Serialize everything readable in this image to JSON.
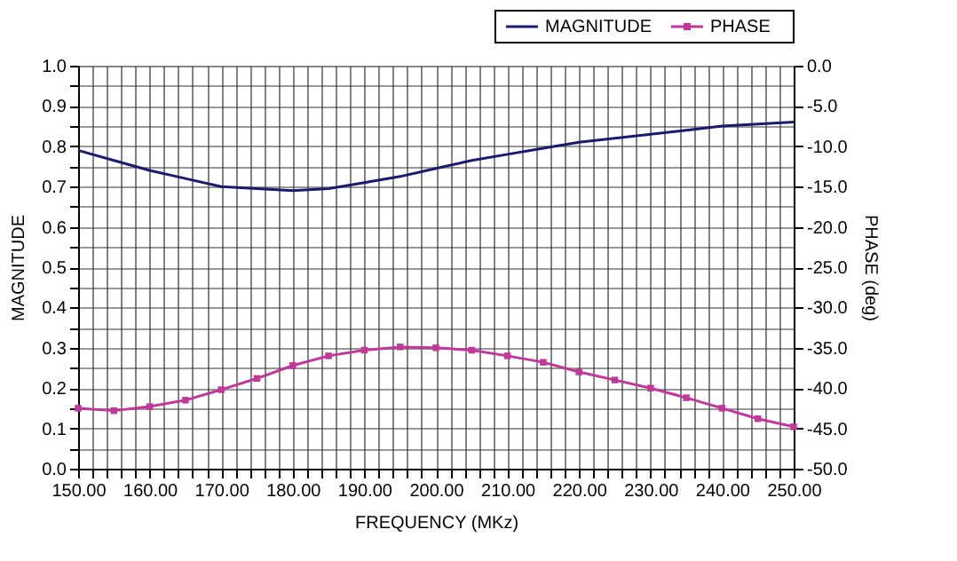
{
  "chart_data": {
    "type": "line",
    "xlabel": "FREQUENCY (MKz)",
    "ylabel": "MAGNITUDE",
    "y2label": "PHASE (deg)",
    "x": [
      150,
      155,
      160,
      165,
      170,
      175,
      180,
      185,
      190,
      195,
      200,
      205,
      210,
      215,
      220,
      225,
      230,
      235,
      240,
      245,
      250
    ],
    "series": [
      {
        "name": "MAGNITUDE",
        "color": "#1a1a6e",
        "marker": "none",
        "values": [
          0.79,
          0.765,
          0.74,
          0.72,
          0.7,
          0.695,
          0.69,
          0.695,
          0.71,
          0.725,
          0.745,
          0.765,
          0.78,
          0.795,
          0.81,
          0.82,
          0.83,
          0.84,
          0.85,
          0.855,
          0.86
        ]
      },
      {
        "name": "PHASE",
        "color": "#c0399a",
        "marker": "square",
        "axis": "y2",
        "values": [
          -42.5,
          -42.8,
          -42.3,
          -41.5,
          -40.2,
          -38.8,
          -37.2,
          -36.0,
          -35.3,
          -34.9,
          -35.0,
          -35.3,
          -36.0,
          -36.8,
          -38.0,
          -39.0,
          -40.0,
          -41.2,
          -42.5,
          -43.8,
          -44.8
        ]
      }
    ],
    "xlim": [
      150,
      250
    ],
    "xticks": [
      {
        "value": 150,
        "label": "150.00"
      },
      {
        "value": 152,
        "label": null
      },
      {
        "value": 154,
        "label": null
      },
      {
        "value": 156,
        "label": null
      },
      {
        "value": 158,
        "label": null
      },
      {
        "value": 160,
        "label": "160.00"
      },
      {
        "value": 162,
        "label": null
      },
      {
        "value": 164,
        "label": null
      },
      {
        "value": 166,
        "label": null
      },
      {
        "value": 168,
        "label": null
      },
      {
        "value": 170,
        "label": "170.00"
      },
      {
        "value": 172,
        "label": null
      },
      {
        "value": 174,
        "label": null
      },
      {
        "value": 176,
        "label": null
      },
      {
        "value": 178,
        "label": null
      },
      {
        "value": 180,
        "label": "180.00"
      },
      {
        "value": 182,
        "label": null
      },
      {
        "value": 184,
        "label": null
      },
      {
        "value": 186,
        "label": null
      },
      {
        "value": 188,
        "label": null
      },
      {
        "value": 190,
        "label": "190.00"
      },
      {
        "value": 192,
        "label": null
      },
      {
        "value": 194,
        "label": null
      },
      {
        "value": 196,
        "label": null
      },
      {
        "value": 198,
        "label": null
      },
      {
        "value": 200,
        "label": "200.00"
      },
      {
        "value": 202,
        "label": null
      },
      {
        "value": 204,
        "label": null
      },
      {
        "value": 206,
        "label": null
      },
      {
        "value": 208,
        "label": null
      },
      {
        "value": 210,
        "label": "210.00"
      },
      {
        "value": 212,
        "label": null
      },
      {
        "value": 214,
        "label": null
      },
      {
        "value": 216,
        "label": null
      },
      {
        "value": 218,
        "label": null
      },
      {
        "value": 220,
        "label": "220.00"
      },
      {
        "value": 222,
        "label": null
      },
      {
        "value": 224,
        "label": null
      },
      {
        "value": 226,
        "label": null
      },
      {
        "value": 228,
        "label": null
      },
      {
        "value": 230,
        "label": "230.00"
      },
      {
        "value": 232,
        "label": null
      },
      {
        "value": 234,
        "label": null
      },
      {
        "value": 236,
        "label": null
      },
      {
        "value": 238,
        "label": null
      },
      {
        "value": 240,
        "label": "240.00"
      },
      {
        "value": 242,
        "label": null
      },
      {
        "value": 244,
        "label": null
      },
      {
        "value": 246,
        "label": null
      },
      {
        "value": 248,
        "label": null
      },
      {
        "value": 250,
        "label": "250.00"
      }
    ],
    "ylim": [
      0,
      1
    ],
    "yticks": [
      {
        "value": 0,
        "label": "0.0"
      },
      {
        "value": 0.05,
        "label": null
      },
      {
        "value": 0.1,
        "label": "0.1"
      },
      {
        "value": 0.15,
        "label": null
      },
      {
        "value": 0.2,
        "label": "0.2"
      },
      {
        "value": 0.25,
        "label": null
      },
      {
        "value": 0.3,
        "label": "0.3"
      },
      {
        "value": 0.35,
        "label": null
      },
      {
        "value": 0.4,
        "label": "0.4"
      },
      {
        "value": 0.45,
        "label": null
      },
      {
        "value": 0.5,
        "label": "0.5"
      },
      {
        "value": 0.55,
        "label": null
      },
      {
        "value": 0.6,
        "label": "0.6"
      },
      {
        "value": 0.65,
        "label": null
      },
      {
        "value": 0.7,
        "label": "0.7"
      },
      {
        "value": 0.75,
        "label": null
      },
      {
        "value": 0.8,
        "label": "0.8"
      },
      {
        "value": 0.85,
        "label": null
      },
      {
        "value": 0.9,
        "label": "0.9"
      },
      {
        "value": 0.95,
        "label": null
      },
      {
        "value": 1,
        "label": "1.0"
      }
    ],
    "y2lim": [
      -50,
      0
    ],
    "y2ticks": [
      {
        "value": -50,
        "label": "-50.0"
      },
      {
        "value": -45,
        "label": "-45.0"
      },
      {
        "value": -40,
        "label": "-40.0"
      },
      {
        "value": -35,
        "label": "-35.0"
      },
      {
        "value": -30,
        "label": "-30.0"
      },
      {
        "value": -25,
        "label": "-25.0"
      },
      {
        "value": -20,
        "label": "-20.0"
      },
      {
        "value": -15,
        "label": "-15.0"
      },
      {
        "value": -10,
        "label": "-10.0"
      },
      {
        "value": -5,
        "label": "-5.0"
      },
      {
        "value": 0,
        "label": "0.0"
      }
    ],
    "grid": true,
    "legend": "top right",
    "line_style": "solid"
  }
}
